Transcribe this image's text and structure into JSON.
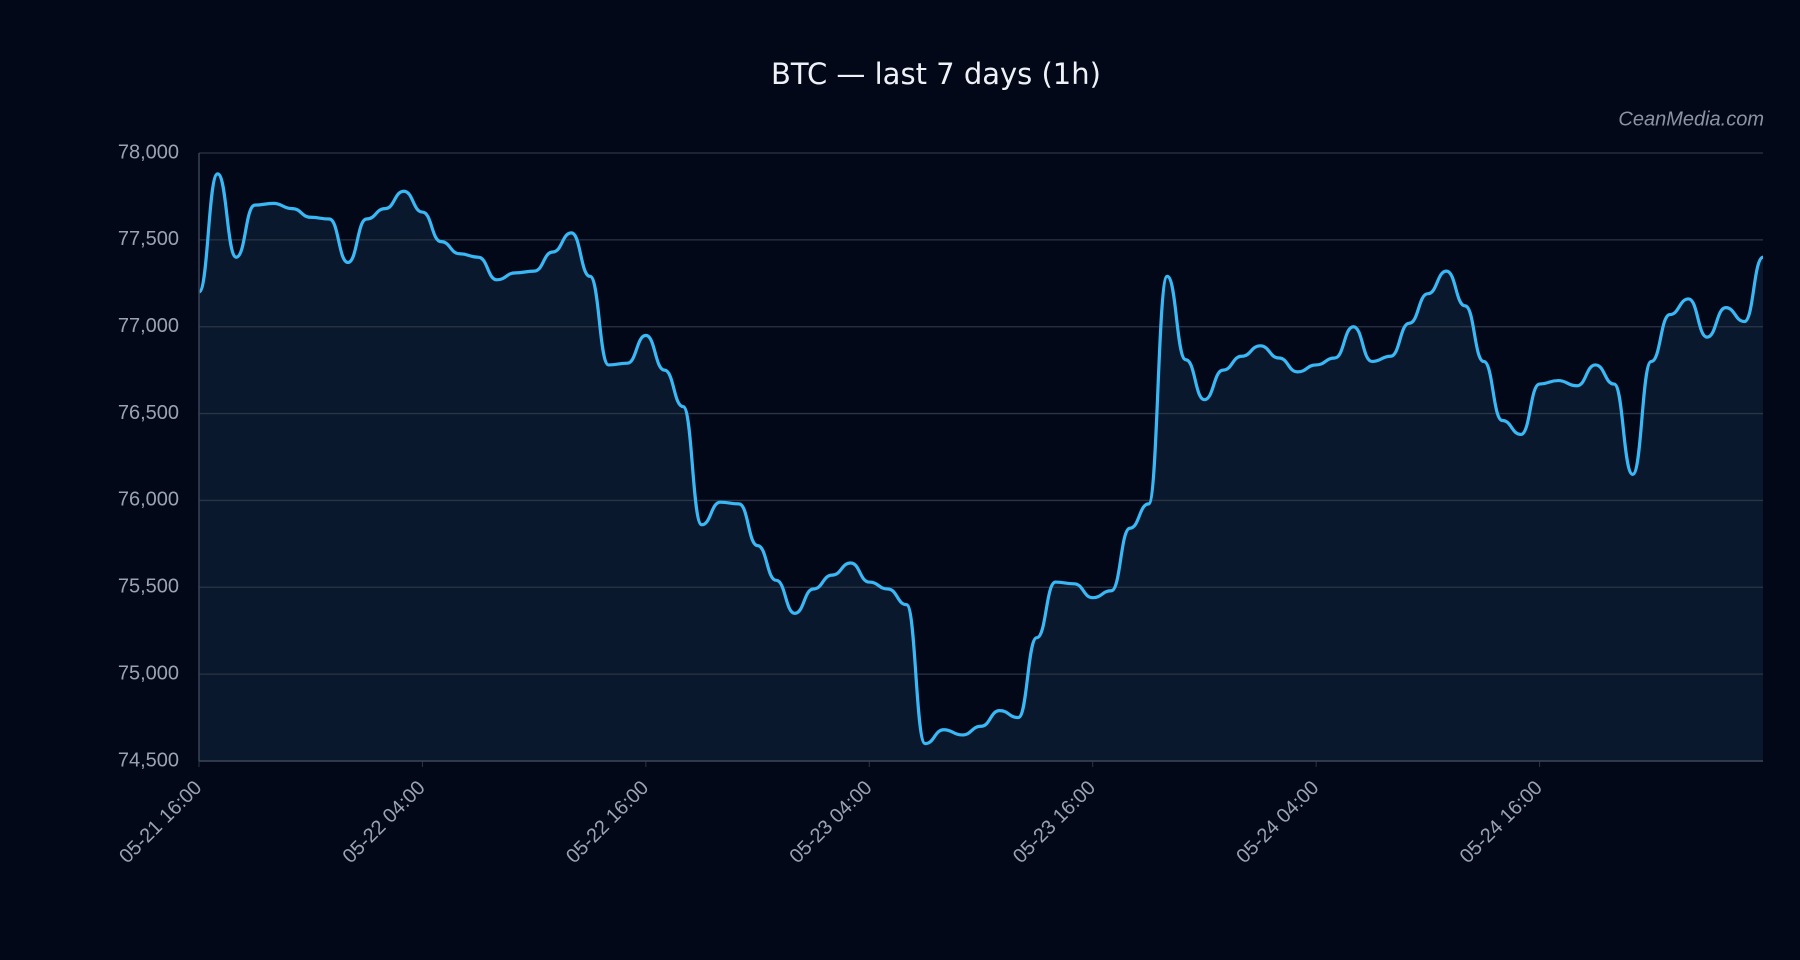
{
  "chart_data": {
    "type": "line",
    "title": "BTC — last 7 days (1h)",
    "watermark": "CeanMedia.com",
    "x": [
      "05-21 16:00",
      "05-21 17:00",
      "05-21 18:00",
      "05-21 19:00",
      "05-21 20:00",
      "05-21 21:00",
      "05-21 22:00",
      "05-21 23:00",
      "05-22 00:00",
      "05-22 01:00",
      "05-22 02:00",
      "05-22 03:00",
      "05-22 04:00",
      "05-22 05:00",
      "05-22 06:00",
      "05-22 07:00",
      "05-22 08:00",
      "05-22 09:00",
      "05-22 10:00",
      "05-22 11:00",
      "05-22 12:00",
      "05-22 13:00",
      "05-22 14:00",
      "05-22 15:00",
      "05-22 16:00",
      "05-22 17:00",
      "05-22 18:00",
      "05-22 19:00",
      "05-22 20:00",
      "05-22 21:00",
      "05-22 22:00",
      "05-22 23:00",
      "05-23 00:00",
      "05-23 01:00",
      "05-23 02:00",
      "05-23 03:00",
      "05-23 04:00",
      "05-23 05:00",
      "05-23 06:00",
      "05-23 07:00",
      "05-23 08:00",
      "05-23 09:00",
      "05-23 10:00",
      "05-23 11:00",
      "05-23 12:00",
      "05-23 13:00",
      "05-23 14:00",
      "05-23 15:00",
      "05-23 16:00",
      "05-23 17:00",
      "05-23 18:00",
      "05-23 19:00",
      "05-23 20:00",
      "05-23 21:00",
      "05-23 22:00",
      "05-23 23:00",
      "05-24 00:00",
      "05-24 01:00",
      "05-24 02:00",
      "05-24 03:00",
      "05-24 04:00",
      "05-24 05:00",
      "05-24 06:00",
      "05-24 07:00",
      "05-24 08:00",
      "05-24 09:00",
      "05-24 10:00",
      "05-24 11:00",
      "05-24 12:00",
      "05-24 13:00",
      "05-24 14:00",
      "05-24 15:00",
      "05-24 16:00",
      "05-24 17:00",
      "05-24 18:00",
      "05-24 19:00",
      "05-24 20:00",
      "05-24 21:00",
      "05-24 22:00",
      "05-24 23:00",
      "05-25 00:00",
      "05-25 01:00",
      "05-25 02:00",
      "05-25 03:00",
      "05-25 04:00"
    ],
    "series": [
      {
        "name": "BTC",
        "color": "#3ab8f5",
        "values": [
          77200,
          77880,
          77400,
          77700,
          77710,
          77680,
          77630,
          77620,
          77370,
          77620,
          77680,
          77780,
          77660,
          77490,
          77420,
          77400,
          77270,
          77310,
          77320,
          77430,
          77540,
          77290,
          76780,
          76790,
          76950,
          76750,
          76540,
          75860,
          75990,
          75980,
          75740,
          75540,
          75350,
          75490,
          75570,
          75640,
          75530,
          75490,
          75400,
          74600,
          74680,
          74650,
          74700,
          74790,
          74750,
          75210,
          75530,
          75520,
          75440,
          75480,
          75840,
          75980,
          77290,
          76810,
          76580,
          76750,
          76830,
          76890,
          76820,
          76740,
          76780,
          76820,
          77000,
          76800,
          76830,
          77020,
          77190,
          77320,
          77120,
          76800,
          76460,
          76380,
          76670,
          76690,
          76660,
          76780,
          76670,
          76150,
          76800,
          77070,
          77160,
          76940,
          77110,
          77030,
          77400
        ]
      }
    ],
    "xticks": [
      "05-21 16:00",
      "05-22 04:00",
      "05-22 16:00",
      "05-23 04:00",
      "05-23 16:00",
      "05-24 04:00",
      "05-24 16:00"
    ],
    "ylim": [
      74500,
      78000
    ],
    "yticks": [
      {
        "value": 74500,
        "label": "74,500"
      },
      {
        "value": 75000,
        "label": "75,000"
      },
      {
        "value": 75500,
        "label": "75,500"
      },
      {
        "value": 76000,
        "label": "76,000"
      },
      {
        "value": 76500,
        "label": "76,500"
      },
      {
        "value": 77000,
        "label": "77,000"
      },
      {
        "value": 77500,
        "label": "77,500"
      },
      {
        "value": 78000,
        "label": "78,000"
      }
    ],
    "grid": true
  }
}
